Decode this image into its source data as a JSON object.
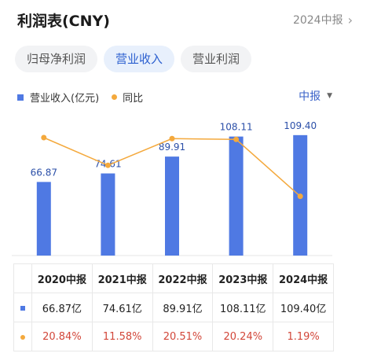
{
  "header": {
    "title": "利润表(CNY)",
    "period_link": "2024中报"
  },
  "tabs": [
    {
      "label": "归母净利润",
      "active": false
    },
    {
      "label": "营业收入",
      "active": true
    },
    {
      "label": "营业利润",
      "active": false
    }
  ],
  "legend": {
    "revenue": "营业收入(亿元)",
    "yoy": "同比"
  },
  "period_select": "中报",
  "colors": {
    "bar": "#4f79e3",
    "line": "#f4a93d",
    "accent": "#2b5fcf",
    "negative_text": "#d2473a"
  },
  "chart_data": {
    "type": "bar",
    "categories": [
      "2020中报",
      "2021中报",
      "2022中报",
      "2023中报",
      "2024中报"
    ],
    "series": [
      {
        "name": "营业收入(亿元)",
        "type": "bar",
        "values": [
          66.87,
          74.61,
          89.91,
          108.11,
          109.4
        ]
      },
      {
        "name": "同比",
        "type": "line",
        "values": [
          20.84,
          11.58,
          20.51,
          20.24,
          1.19
        ]
      }
    ],
    "bar_labels": [
      "66.87",
      "74.61",
      "89.91",
      "108.11",
      "109.40"
    ]
  },
  "table": {
    "headers": [
      "2020中报",
      "2021中报",
      "2022中报",
      "2023中报",
      "2024中报"
    ],
    "revenue_row": [
      "66.87亿",
      "74.61亿",
      "89.91亿",
      "108.11亿",
      "109.40亿"
    ],
    "yoy_row": [
      "20.84%",
      "11.58%",
      "20.51%",
      "20.24%",
      "1.19%"
    ]
  }
}
